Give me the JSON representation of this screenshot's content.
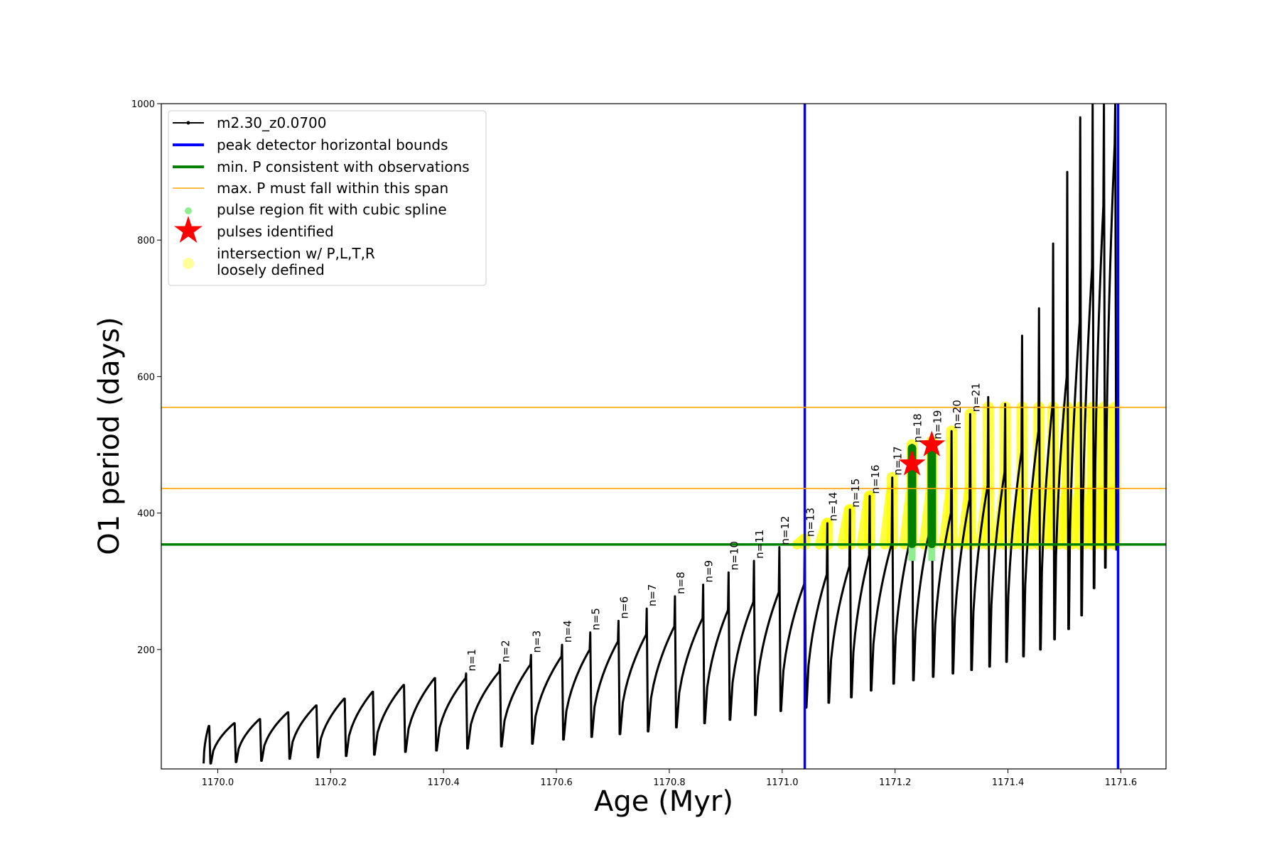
{
  "chart_data": {
    "type": "line",
    "xlabel": "Age (Myr)",
    "ylabel": "O1 period (days)",
    "xlim": [
      1169.9,
      1171.68
    ],
    "ylim": [
      25,
      1000
    ],
    "xticks": [
      1170.0,
      1170.2,
      1170.4,
      1170.6,
      1170.8,
      1171.0,
      1171.2,
      1171.4,
      1171.6
    ],
    "xtick_labels": [
      "1170.0",
      "1170.2",
      "1170.4",
      "1170.6",
      "1170.8",
      "1171.0",
      "1171.2",
      "1171.4",
      "1171.6"
    ],
    "yticks": [
      200,
      400,
      600,
      800,
      1000
    ],
    "ytick_labels": [
      "200",
      "400",
      "600",
      "800",
      "1000"
    ],
    "grid": false,
    "legend_position": "top-left",
    "legend": [
      {
        "label": "m2.30_z0.0700",
        "kind": "line-marker",
        "color": "#000000"
      },
      {
        "label": "peak detector horizontal bounds",
        "kind": "line",
        "color": "#0000ff"
      },
      {
        "label": "min. P consistent with observations",
        "kind": "line",
        "color": "#008000"
      },
      {
        "label": "max. P must fall within this span",
        "kind": "thin-line",
        "color": "#ffa500"
      },
      {
        "label": "pulse region fit with cubic spline",
        "kind": "dot",
        "color": "#90ee90"
      },
      {
        "label": "pulses identified",
        "kind": "star",
        "color": "#ff0000"
      },
      {
        "label": "intersection w/ P,L,T,R",
        "label2": "loosely defined",
        "kind": "circle",
        "color": "#ffff99"
      }
    ],
    "vertical_bounds": {
      "x": [
        1171.04,
        1171.595
      ],
      "color": "#0000ff"
    },
    "min_period": {
      "y": 354,
      "color": "#008000"
    },
    "max_period_span": {
      "y": [
        436,
        555
      ],
      "color": "#ffa500"
    },
    "pulses": {
      "ages": [
        1170.44,
        1170.5,
        1170.555,
        1170.61,
        1170.66,
        1170.71,
        1170.76,
        1170.81,
        1170.86,
        1170.905,
        1170.95,
        1170.995,
        1171.04,
        1171.08,
        1171.12,
        1171.155,
        1171.195,
        1171.23,
        1171.265,
        1171.3,
        1171.333,
        1171.365,
        1171.395,
        1171.425,
        1171.455,
        1171.48,
        1171.505,
        1171.528,
        1171.55,
        1171.57,
        1171.59
      ],
      "peak_periods": [
        165,
        178,
        192,
        207,
        225,
        242,
        260,
        278,
        295,
        313,
        330,
        350,
        362,
        385,
        405,
        425,
        452,
        500,
        505,
        520,
        545,
        570,
        560,
        660,
        700,
        795,
        900,
        980,
        1000,
        1000,
        1000
      ],
      "trough_periods": [
        55,
        58,
        62,
        68,
        72,
        76,
        80,
        86,
        92,
        97,
        104,
        110,
        115,
        122,
        130,
        140,
        150,
        155,
        160,
        165,
        170,
        175,
        182,
        190,
        200,
        215,
        230,
        250,
        290,
        320,
        345
      ],
      "pre_peak_periods": [
        158,
        168,
        178,
        190,
        200,
        212,
        222,
        234,
        246,
        258,
        270,
        284,
        296,
        310,
        322,
        338,
        355,
        370,
        385,
        400,
        420,
        440,
        460,
        490,
        520,
        560,
        600,
        680,
        760,
        850,
        940
      ],
      "labels": [
        "n=1",
        "n=2",
        "n=3",
        "n=4",
        "n=5",
        "n=6",
        "n=7",
        "n=8",
        "n=9",
        "n=10",
        "n=11",
        "n=12",
        "n=13",
        "n=14",
        "n=15",
        "n=16",
        "n=17",
        "n=18",
        "n=19",
        "n=20",
        "n=21"
      ]
    },
    "early_pulses": {
      "ages": [
        1169.985,
        1170.03,
        1170.075,
        1170.125,
        1170.175,
        1170.225,
        1170.275,
        1170.33,
        1170.385
      ],
      "peak_periods": [
        88,
        92,
        98,
        108,
        118,
        128,
        138,
        148,
        158
      ],
      "trough_periods": [
        33,
        35,
        37,
        40,
        42,
        44,
        46,
        50,
        52
      ]
    },
    "identified_pulses": [
      {
        "label": "n=17",
        "age": 1171.23,
        "period": 472
      },
      {
        "label": "n=18",
        "age": 1171.265,
        "period": 500
      }
    ],
    "highlight_pulses": [
      {
        "age": 1171.23,
        "period_range": [
          355,
          495
        ]
      },
      {
        "age": 1171.265,
        "period_range": [
          355,
          495
        ]
      }
    ]
  }
}
